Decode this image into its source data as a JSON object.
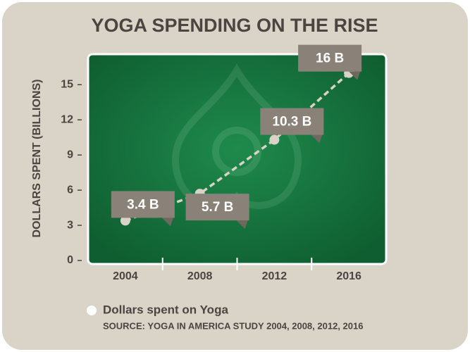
{
  "chart_data": {
    "type": "line",
    "title": "YOGA SPENDING ON THE RISE",
    "y_label": "DOLLARS SPENT (BILLIONS)",
    "categories": [
      "2004",
      "2008",
      "2012",
      "2016"
    ],
    "series": [
      {
        "name": "Dollars spent on Yoga",
        "color": "#d8d3c6",
        "values": [
          3.4,
          5.7,
          10.3,
          16
        ],
        "value_labels": [
          "3.4 B",
          "5.7 B",
          "10.3 B",
          "16 B"
        ]
      }
    ],
    "ylim": [
      -0.3,
      17.6
    ],
    "yticks": [
      0,
      3,
      6,
      9,
      12,
      15
    ],
    "grid": false,
    "source": "SOURCE: YOGA IN AMERICA STUDY 2004, 2008, 2012, 2016"
  }
}
